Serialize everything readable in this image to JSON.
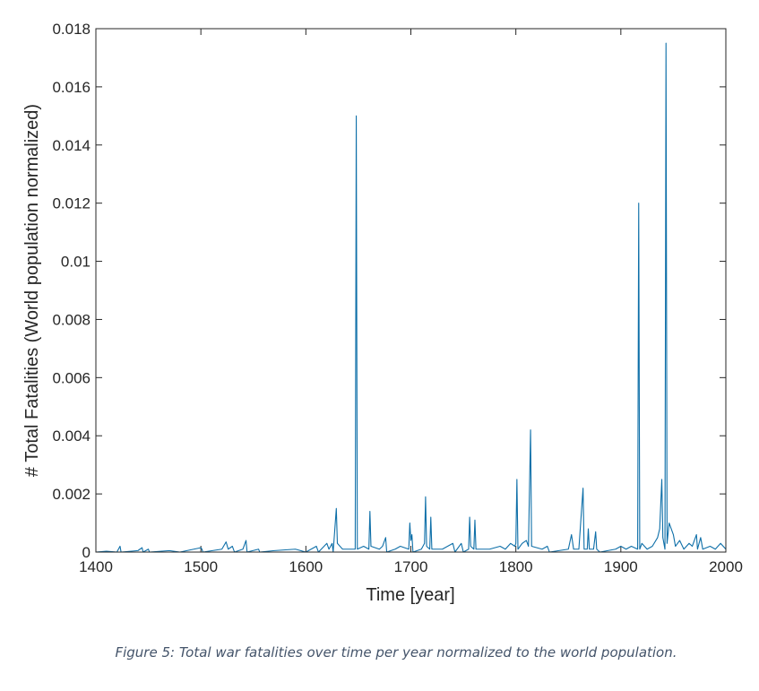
{
  "chart_data": {
    "type": "line",
    "xlabel": "Time [year]",
    "ylabel": "# Total Fatalities (World population normalized)",
    "caption": "Figure 5: Total war fatalities over time per year normalized to the world population.",
    "color": "#0e6fa8",
    "xlim": [
      1400,
      2000
    ],
    "xticks": [
      1400,
      1500,
      1600,
      1700,
      1800,
      1900,
      2000
    ],
    "ylim": [
      0,
      0.018
    ],
    "yticks": [
      0,
      0.002,
      0.004,
      0.006,
      0.008,
      0.01,
      0.012,
      0.014,
      0.016,
      0.018
    ],
    "x": [
      1400,
      1410,
      1420,
      1423,
      1424,
      1440,
      1444,
      1445,
      1450,
      1451,
      1470,
      1480,
      1500,
      1501,
      1502,
      1520,
      1524,
      1526,
      1530,
      1532,
      1540,
      1543,
      1544,
      1555,
      1556,
      1570,
      1590,
      1600,
      1605,
      1610,
      1612,
      1620,
      1622,
      1625,
      1626,
      1629,
      1630,
      1635,
      1640,
      1647,
      1648,
      1649,
      1655,
      1660,
      1661,
      1662,
      1670,
      1673,
      1676,
      1677,
      1685,
      1690,
      1698,
      1699,
      1700,
      1701,
      1702,
      1710,
      1713,
      1714,
      1715,
      1718,
      1719,
      1720,
      1730,
      1740,
      1742,
      1748,
      1750,
      1755,
      1756,
      1757,
      1760,
      1761,
      1762,
      1775,
      1785,
      1790,
      1795,
      1799,
      1800,
      1801,
      1802,
      1806,
      1810,
      1812,
      1814,
      1815,
      1825,
      1830,
      1832,
      1850,
      1853,
      1855,
      1860,
      1864,
      1865,
      1868,
      1869,
      1870,
      1874,
      1876,
      1877,
      1880,
      1895,
      1900,
      1905,
      1910,
      1916,
      1917,
      1918,
      1920,
      1925,
      1930,
      1935,
      1937,
      1939,
      1940,
      1942,
      1943,
      1944,
      1946,
      1948,
      1950,
      1952,
      1956,
      1960,
      1965,
      1968,
      1972,
      1973,
      1976,
      1978,
      1985,
      1990,
      1995,
      2000
    ],
    "values": [
      0,
      3e-05,
      0,
      0.0002,
      0,
      5e-05,
      0.00015,
      0,
      0.0001,
      0,
      5e-05,
      0,
      0.00015,
      0.0001,
      0,
      0.0001,
      0.00035,
      0.0001,
      0.0002,
      0,
      0.0001,
      0.0004,
      0,
      0.0001,
      0,
      5e-05,
      0.0001,
      0,
      0.0001,
      0.0002,
      0,
      0.0003,
      0.0001,
      0.0003,
      0,
      0.0015,
      0.0003,
      0.0001,
      0.0001,
      0.0001,
      0.015,
      0.0001,
      0.0002,
      0.0001,
      0.0014,
      0.0002,
      0.0001,
      0.0002,
      0.0005,
      0,
      0.0001,
      0.0002,
      0.0001,
      0.001,
      0.0004,
      0.0006,
      0,
      0.0001,
      0.0003,
      0.0019,
      0.0002,
      0.0001,
      0.0012,
      0.0001,
      0.0001,
      0.0003,
      0,
      0.0003,
      0,
      0.0001,
      0.0012,
      0.0002,
      0.0001,
      0.0011,
      0.0001,
      0.0001,
      0.0002,
      0.0001,
      0.0003,
      0.0002,
      0.0003,
      0.0025,
      0.0001,
      0.0003,
      0.0004,
      0.0002,
      0.0042,
      0.0002,
      0.0001,
      0.0002,
      0,
      0.0001,
      0.0006,
      0.0001,
      0.0001,
      0.0022,
      0.0001,
      0.0001,
      0.0008,
      0.0001,
      0.0001,
      0.0007,
      0.0001,
      0,
      0.0001,
      0.0002,
      0.0001,
      0.0002,
      0.0001,
      0.012,
      0.0001,
      0.0003,
      0.0001,
      0.0002,
      0.0005,
      0.0008,
      0.0025,
      0.0005,
      0.0001,
      0.0175,
      0.0003,
      0.001,
      0.0008,
      0.0006,
      0.0002,
      0.0004,
      0.0001,
      0.0003,
      0.0002,
      0.0006,
      0.0001,
      0.0005,
      0.0001,
      0.0002,
      0.0001,
      0.0003,
      0.0001
    ]
  }
}
